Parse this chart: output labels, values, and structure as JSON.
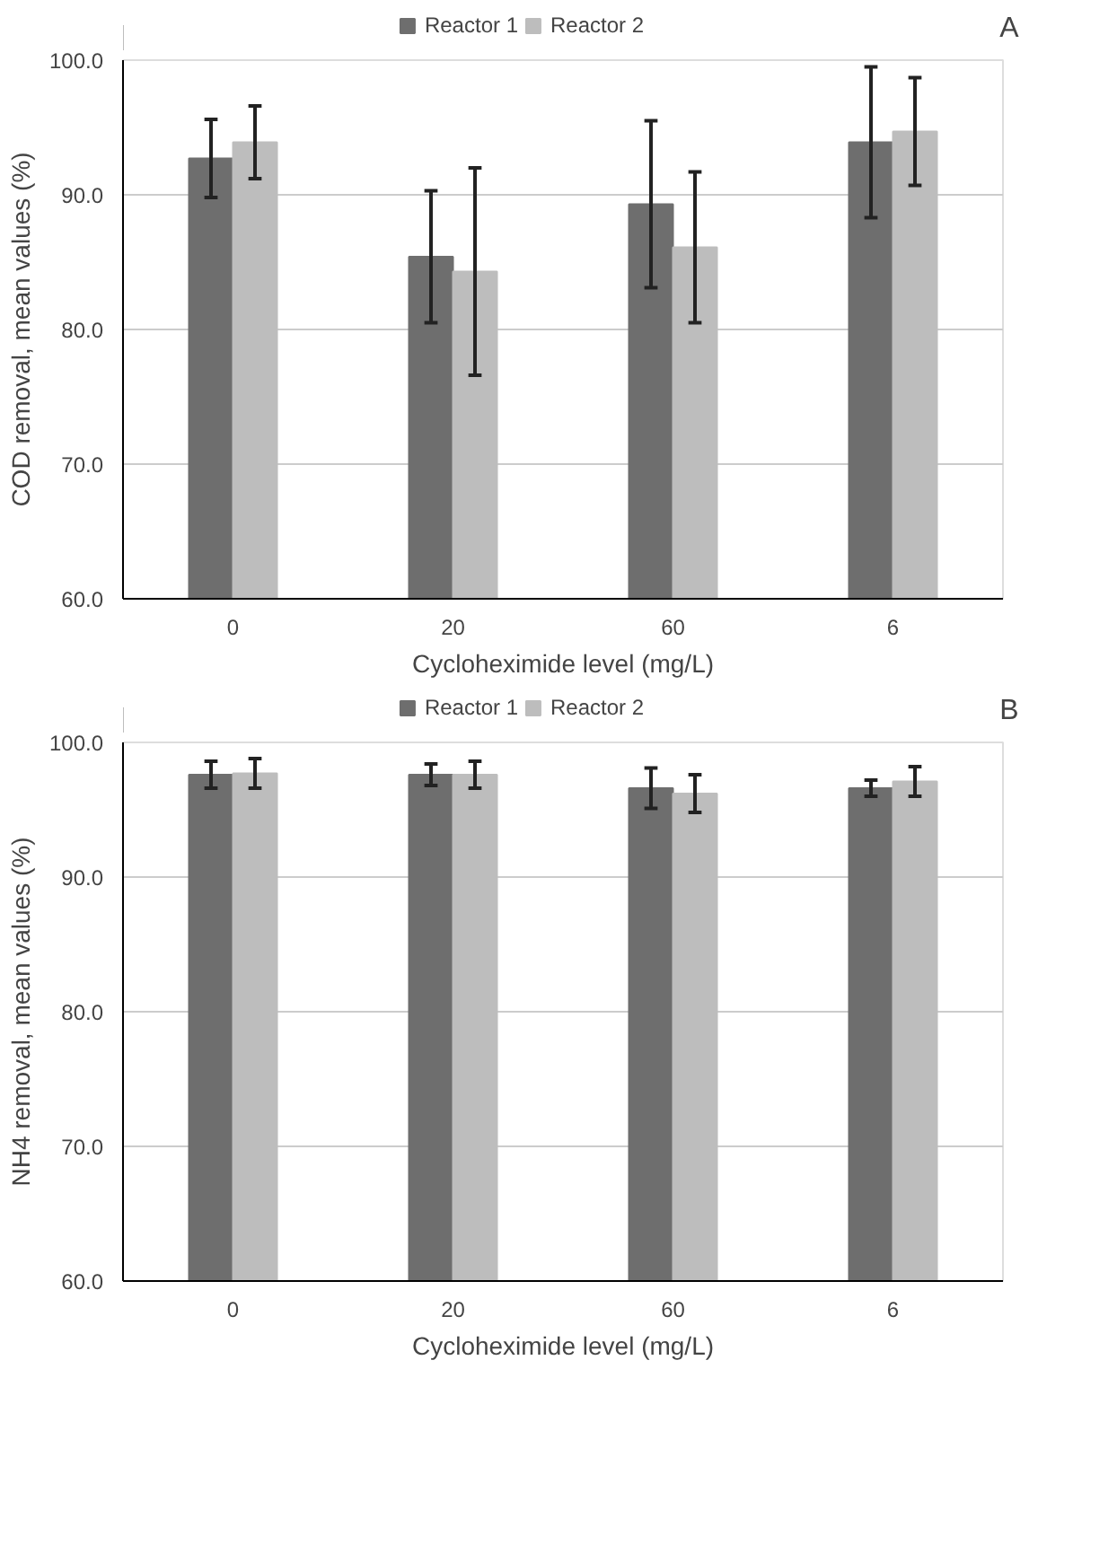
{
  "chart_data": [
    {
      "type": "bar",
      "xlabel": "Cycloheximide level (mg/L)",
      "ylabel": "COD removal, mean values (%)",
      "categories": [
        "0",
        "20",
        "60",
        "6"
      ],
      "ylim": [
        60,
        100
      ],
      "yticks": [
        {
          "value": 60,
          "label": "60.0"
        },
        {
          "value": 70,
          "label": "70.0"
        },
        {
          "value": 80,
          "label": "80.0"
        },
        {
          "value": 90,
          "label": "90.0"
        },
        {
          "value": 100,
          "label": "100.0"
        }
      ],
      "grid": "y",
      "legend": "top",
      "annotations": [
        "A"
      ],
      "series": [
        {
          "name": "Reactor 1",
          "color": "#6e6e6e",
          "values": [
            92.7,
            85.4,
            89.3,
            93.9
          ],
          "errors": [
            2.9,
            4.9,
            6.2,
            5.6
          ]
        },
        {
          "name": "Reactor 2",
          "color": "#bdbdbd",
          "values": [
            93.9,
            84.3,
            86.1,
            94.7
          ],
          "errors": [
            2.7,
            7.7,
            5.6,
            4.0
          ]
        }
      ]
    },
    {
      "type": "bar",
      "xlabel": "Cycloheximide level (mg/L)",
      "ylabel": "NH4 removal, mean values (%)",
      "categories": [
        "0",
        "20",
        "60",
        "6"
      ],
      "ylim": [
        60,
        100
      ],
      "yticks": [
        {
          "value": 60,
          "label": "60.0"
        },
        {
          "value": 70,
          "label": "70.0"
        },
        {
          "value": 80,
          "label": "80.0"
        },
        {
          "value": 90,
          "label": "90.0"
        },
        {
          "value": 100,
          "label": "100.0"
        }
      ],
      "grid": "y",
      "legend": "top",
      "annotations": [
        "B"
      ],
      "series": [
        {
          "name": "Reactor 1",
          "color": "#6e6e6e",
          "values": [
            97.6,
            97.6,
            96.6,
            96.6
          ],
          "errors": [
            1.0,
            0.8,
            1.5,
            0.6
          ]
        },
        {
          "name": "Reactor 2",
          "color": "#bdbdbd",
          "values": [
            97.7,
            97.6,
            96.2,
            97.1
          ],
          "errors": [
            1.1,
            1.0,
            1.4,
            1.1
          ]
        }
      ]
    }
  ]
}
